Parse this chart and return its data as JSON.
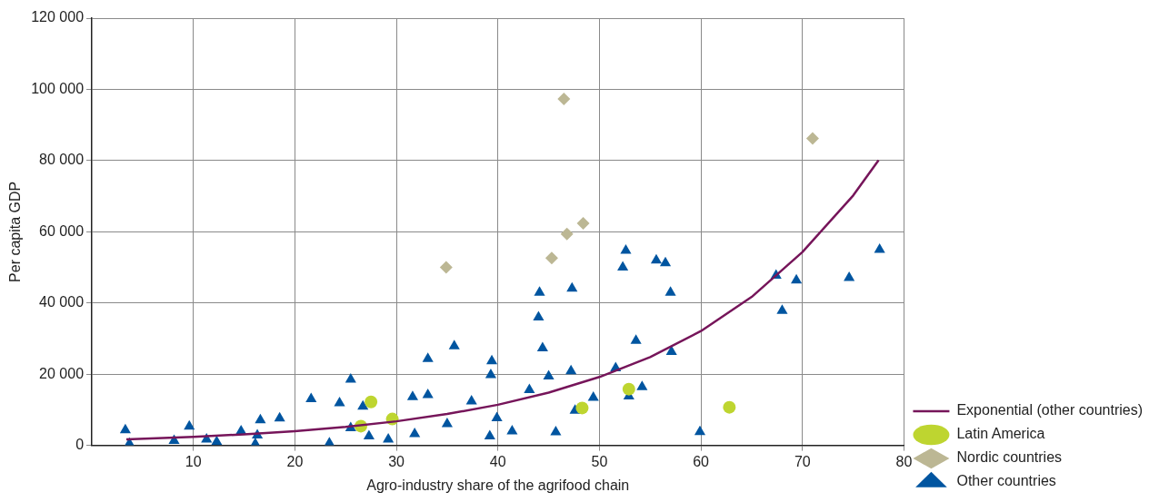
{
  "chart_data": {
    "type": "scatter",
    "xlabel": "Agro-industry share of the agrifood chain",
    "ylabel": "Per capita GDP",
    "xlim": [
      0,
      80
    ],
    "xticks": [
      10,
      20,
      30,
      40,
      50,
      60,
      70,
      80
    ],
    "ylim": [
      0,
      120000
    ],
    "yticks": [
      {
        "value": 0,
        "label": "0"
      },
      {
        "value": 20000,
        "label": "20 000"
      },
      {
        "value": 40000,
        "label": "40 000"
      },
      {
        "value": 60000,
        "label": "60 000"
      },
      {
        "value": 80000,
        "label": "80 000"
      },
      {
        "value": 100000,
        "label": "100 000"
      },
      {
        "value": 120000,
        "label": "120 000"
      }
    ],
    "grid": true,
    "legend": "bottom right",
    "series": [
      {
        "name": "Latin America",
        "color": "#bed530",
        "marker": "circle",
        "x": [
          26.5,
          27.5,
          29.6,
          48.3,
          52.9,
          62.8
        ],
        "values": [
          5400,
          12200,
          7400,
          10500,
          15800,
          10700
        ]
      },
      {
        "name": "Nordic countries",
        "color": "#bcb794",
        "marker": "diamond",
        "x": [
          34.9,
          45.3,
          46.5,
          46.8,
          48.4,
          71.0
        ],
        "values": [
          50000,
          52600,
          97300,
          59400,
          62400,
          86200
        ]
      },
      {
        "name": "Other countries",
        "color": "#0055a0",
        "marker": "triangle",
        "x": [
          3.3,
          3.7,
          8.1,
          9.6,
          11.3,
          12.3,
          14.7,
          16.1,
          16.3,
          16.6,
          18.5,
          21.6,
          23.4,
          24.4,
          25.5,
          25.5,
          26.7,
          27.3,
          29.2,
          31.6,
          31.8,
          33.1,
          33.1,
          35.0,
          35.7,
          37.4,
          39.2,
          39.3,
          39.4,
          39.9,
          41.4,
          43.1,
          44.0,
          44.1,
          44.4,
          45.0,
          45.7,
          47.2,
          47.3,
          47.6,
          49.4,
          51.6,
          52.3,
          52.6,
          52.9,
          53.6,
          54.2,
          55.6,
          56.5,
          57.0,
          57.1,
          59.9,
          67.4,
          68.0,
          69.4,
          74.6,
          77.6
        ],
        "values": [
          4300,
          500,
          1300,
          5300,
          1700,
          1000,
          4000,
          400,
          2800,
          7100,
          7600,
          13000,
          600,
          11900,
          18500,
          4900,
          10900,
          2600,
          1700,
          13600,
          3200,
          24300,
          14200,
          6000,
          27900,
          12400,
          2600,
          19800,
          23700,
          7700,
          4000,
          15600,
          36000,
          42900,
          27300,
          19400,
          3700,
          20900,
          44100,
          9800,
          13400,
          21700,
          50000,
          54700,
          13800,
          29400,
          16400,
          52000,
          51200,
          42900,
          26300,
          3800,
          47700,
          37800,
          46400,
          47100,
          55000
        ]
      },
      {
        "name": "Exponential (other countries)",
        "type": "line",
        "color": "#76155a",
        "marker": "none",
        "x": [
          3.4,
          10,
          15,
          20,
          25,
          30,
          35,
          40,
          45,
          50,
          55,
          60,
          65,
          70,
          75,
          77.5
        ],
        "values": [
          1700,
          2400,
          3100,
          4000,
          5200,
          6750,
          8800,
          11400,
          14800,
          19200,
          24800,
          32100,
          41700,
          54300,
          70200,
          80100
        ]
      }
    ]
  }
}
